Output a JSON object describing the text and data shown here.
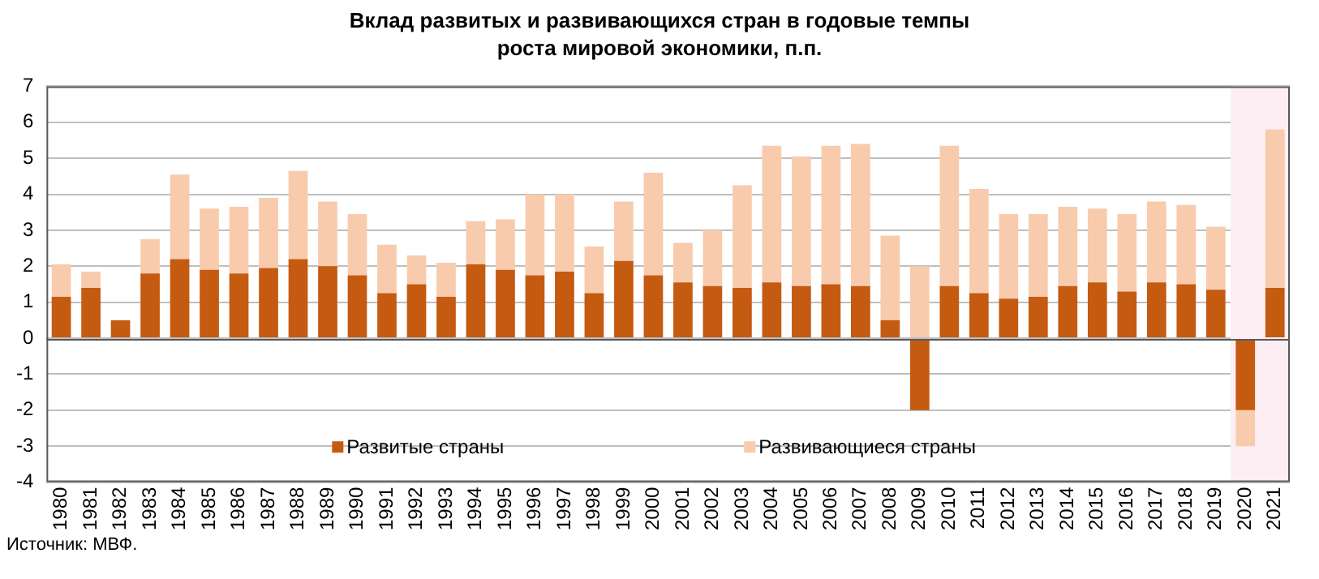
{
  "chart_data": {
    "type": "bar",
    "title": "Вклад развитых  и развивающихся  стран  в годовые темпы роста  мировой экономики, п.п.",
    "categories": [
      "1980",
      "1981",
      "1982",
      "1983",
      "1984",
      "1985",
      "1986",
      "1987",
      "1988",
      "1989",
      "1990",
      "1991",
      "1992",
      "1993",
      "1994",
      "1995",
      "1996",
      "1997",
      "1998",
      "1999",
      "2000",
      "2001",
      "2002",
      "2003",
      "2004",
      "2005",
      "2006",
      "2007",
      "2008",
      "2009",
      "2010",
      "2011",
      "2012",
      "2013",
      "2014",
      "2015",
      "2016",
      "2017",
      "2018",
      "2019",
      "2020",
      "2021"
    ],
    "series": [
      {
        "name": "Развитые страны",
        "color": "#c55a11",
        "values": [
          1.15,
          1.4,
          0.5,
          1.8,
          2.2,
          1.9,
          1.8,
          1.95,
          2.2,
          2.0,
          1.75,
          1.25,
          1.5,
          1.15,
          2.05,
          1.9,
          1.75,
          1.85,
          1.25,
          2.15,
          1.75,
          1.55,
          1.45,
          1.4,
          1.55,
          1.45,
          1.5,
          1.45,
          0.5,
          -2.0,
          1.45,
          1.25,
          1.1,
          1.15,
          1.45,
          1.55,
          1.3,
          1.55,
          1.5,
          1.35,
          -2.0,
          1.4
        ]
      },
      {
        "name": "Развивающиеся страны",
        "color": "#f8cbad",
        "values": [
          0.9,
          0.45,
          0,
          0.95,
          2.35,
          1.7,
          1.85,
          1.95,
          2.45,
          1.8,
          1.7,
          1.35,
          0.8,
          0.95,
          1.2,
          1.4,
          2.25,
          2.15,
          1.3,
          1.65,
          2.85,
          1.1,
          1.55,
          2.85,
          3.8,
          3.6,
          3.85,
          3.95,
          2.35,
          2.0,
          3.9,
          2.9,
          2.35,
          2.3,
          2.2,
          2.05,
          2.15,
          2.25,
          2.2,
          1.75,
          -1.0,
          4.4
        ]
      }
    ],
    "stacked": true,
    "ylim": [
      -4,
      7
    ],
    "yticks": [
      -4,
      -3,
      -2,
      -1,
      0,
      1,
      2,
      3,
      4,
      5,
      6,
      7
    ],
    "grid": "y",
    "legend": "bottom",
    "bands": [
      {
        "axis": "x",
        "from": "2020",
        "to": "2021",
        "label": null,
        "color": "#fdeef3"
      }
    ],
    "annotations": [
      "Источник: МВФ."
    ]
  }
}
